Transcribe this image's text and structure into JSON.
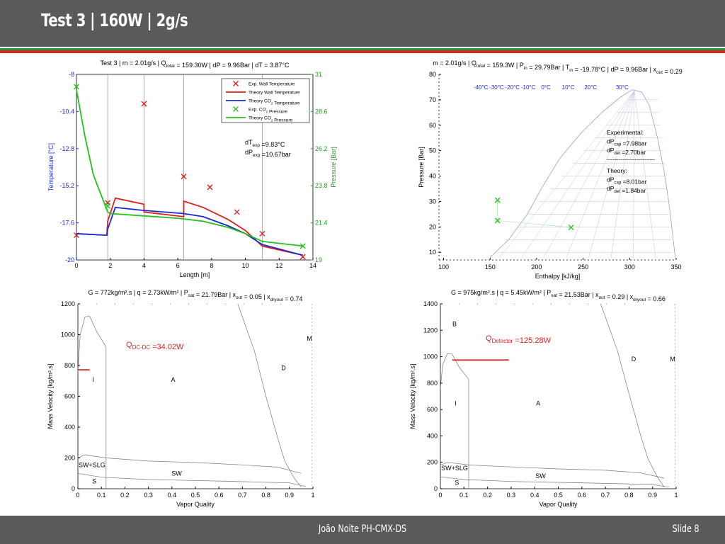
{
  "slide": {
    "title": "Test 3 |  160W | 2g/s",
    "footer_author": "João Noite PH-CMX-DS",
    "footer_slide": "Slide 8",
    "colors": {
      "header": "#5a5a5a",
      "stripe_green": "#1f9a3a",
      "stripe_red": "#d9241c"
    }
  },
  "chart_data": [
    {
      "type": "line",
      "title": "Test 3 | m = 2.01g/s | Q_total = 159.30W | dP = 9.96Bar | dT = 3.87°C",
      "xlabel": "Length [m]",
      "ylabel": "Temperature [°C]",
      "y2label": "Pressure [Bar]",
      "xlim": [
        0,
        14
      ],
      "ylim": [
        -20,
        -8
      ],
      "y2lim": [
        19,
        31
      ],
      "xticks": [
        "0",
        "2",
        "4",
        "6",
        "8",
        "10",
        "12",
        "14"
      ],
      "yticks": [
        "-20",
        "-17.6",
        "-15.2",
        "-12.8",
        "-10.4",
        "-8"
      ],
      "y2ticks": [
        "19",
        "21.4",
        "23.8",
        "26.2",
        "28.6",
        "31"
      ],
      "legend_position": "top-right",
      "vlines_x": [
        1.85,
        4.0,
        6.35,
        11.0
      ],
      "annotations": [
        "dT_exp =9.83°C",
        "dP_exp =10.67bar"
      ],
      "series": [
        {
          "name": "Exp. Wall Temperature",
          "axis": "left",
          "marker": "x",
          "color": "#e0201b",
          "x": [
            0,
            1.85,
            4.0,
            6.35,
            7.9,
            9.5,
            11.0,
            13.4
          ],
          "y": [
            -18.4,
            -16.3,
            -9.9,
            -14.6,
            -15.3,
            -16.9,
            -18.3,
            -19.8
          ]
        },
        {
          "name": "Theory  Wall Temperature",
          "axis": "left",
          "color": "#e0201b",
          "x": [
            0,
            1.8,
            1.85,
            2.3,
            4.0,
            4.0,
            6.35,
            6.35,
            7.5,
            9.0,
            10.0,
            11.0,
            13.4
          ],
          "y": [
            -18.3,
            -18.4,
            -17.5,
            -16.0,
            -16.4,
            -16.9,
            -17.2,
            -16.2,
            -16.6,
            -17.4,
            -18.1,
            -19.1,
            -19.7
          ]
        },
        {
          "name": "Theory  CO2 Temperature",
          "axis": "left",
          "color": "#1a2bd6",
          "x": [
            0,
            1.8,
            1.85,
            2.3,
            4.0,
            6.35,
            7.5,
            9.0,
            10.0,
            11.0,
            13.4
          ],
          "y": [
            -18.3,
            -18.4,
            -18.0,
            -16.6,
            -16.8,
            -17.0,
            -17.2,
            -17.8,
            -18.3,
            -19.0,
            -19.7
          ]
        },
        {
          "name": "Exp. CO2 Pressure",
          "axis": "right",
          "marker": "x",
          "color": "#22c21a",
          "x": [
            0,
            1.85,
            13.4
          ],
          "y": [
            30.2,
            22.5,
            19.9
          ]
        },
        {
          "name": "Theory  CO2 Pressure",
          "axis": "right",
          "color": "#22c21a",
          "x": [
            0,
            0.5,
            1.0,
            1.85,
            2.0,
            4.0,
            6.0,
            7.5,
            9.0,
            10.0,
            11.0,
            13.4
          ],
          "y": [
            30.0,
            27.0,
            24.5,
            22.1,
            22.0,
            21.85,
            21.7,
            21.5,
            21.1,
            20.7,
            20.2,
            19.9
          ]
        }
      ]
    },
    {
      "type": "scatter",
      "title": "m = 2.01g/s | Q_total = 159.3W | P_in = 29.79Bar | T_in = -19.78°C | dP = 9.96Bar | x_out = 0.29",
      "xlabel": "Enthalpy [kJ/kg]",
      "ylabel": "Pressure [Bar]",
      "xlim": [
        95,
        350
      ],
      "ylim": [
        7,
        80
      ],
      "xticks": [
        "100",
        "150",
        "200",
        "250",
        "300",
        "350"
      ],
      "yticks": [
        "10",
        "20",
        "30",
        "40",
        "50",
        "60",
        "70",
        "80"
      ],
      "isotherm_labels": [
        "-40°C",
        "-30°C",
        "-20°C",
        "-10°C",
        "0°C",
        "10°C",
        "20°C",
        "30°C"
      ],
      "annotations": [
        "Experimental:",
        "dP_cap =7.98bar",
        "dP_det =2.70bar",
        "---------------------------",
        "Theory:",
        "dP_cap =8.01bar",
        "dP_det =1.84bar"
      ],
      "series": [
        {
          "name": "",
          "marker": "x",
          "color": "#22c21a",
          "x": [
            158,
            158,
            237
          ],
          "y": [
            30.5,
            22.5,
            19.8
          ]
        }
      ]
    },
    {
      "type": "line",
      "title": "G = 772kg/m².s | q = 2.73kW/m² | P_sat = 21.79Bar | x_out = 0.05 | x_dryout = 0.74",
      "xlabel": "Vapor Quality",
      "ylabel": "Mass Velocity [kg/m².s]",
      "xlim": [
        0,
        1
      ],
      "ylim": [
        0,
        1200
      ],
      "xticks": [
        "0",
        "0.1",
        "0.2",
        "0.3",
        "0.4",
        "0.5",
        "0.6",
        "0.7",
        "0.8",
        "0.9",
        "1"
      ],
      "yticks": [
        "0",
        "200",
        "400",
        "600",
        "800",
        "1000",
        "1200"
      ],
      "regions": [
        "I",
        "A",
        "D",
        "M",
        "SW+SLG",
        "SW",
        "S"
      ],
      "annotation": "Q_DC-DC =34.02W",
      "series": [
        {
          "name": "",
          "color": "#e0201b",
          "x": [
            0,
            0.05
          ],
          "y": [
            772,
            772
          ]
        }
      ]
    },
    {
      "type": "line",
      "title": "G = 975kg/m².s | q = 5.45kW/m² | P_sat = 21.53Bar | x_out = 0.29 | x_dryout = 0.66",
      "xlabel": "Vapor Quality",
      "ylabel": "Mass Velocity [kg/m².s]",
      "xlim": [
        0,
        1
      ],
      "ylim": [
        0,
        1400
      ],
      "xticks": [
        "0",
        "0.1",
        "0.2",
        "0.3",
        "0.4",
        "0.5",
        "0.6",
        "0.7",
        "0.8",
        "0.9",
        "1"
      ],
      "yticks": [
        "0",
        "200",
        "400",
        "600",
        "800",
        "1000",
        "1200",
        "1400"
      ],
      "regions": [
        "B",
        "I",
        "A",
        "D",
        "M",
        "SW+SLG",
        "SW",
        "S"
      ],
      "annotation": "Q_Detector =125.28W",
      "series": [
        {
          "name": "",
          "color": "#e0201b",
          "x": [
            0.05,
            0.29
          ],
          "y": [
            975,
            975
          ]
        }
      ]
    }
  ]
}
